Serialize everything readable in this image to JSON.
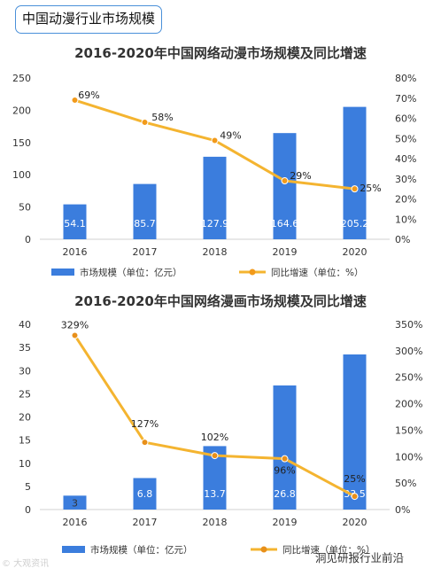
{
  "header": {
    "label": "中国动漫行业市场规模"
  },
  "chart_data": [
    {
      "type": "bar",
      "title": "2016-2020年中国网络动漫市场规模及同比增速",
      "categories": [
        "2016",
        "2017",
        "2018",
        "2019",
        "2020"
      ],
      "series": [
        {
          "name": "市场规模（单位：亿元）",
          "type": "bar",
          "axis": "left",
          "values": [
            54.1,
            85.7,
            127.9,
            164.6,
            205.2
          ],
          "labels": [
            "54.1",
            "85.7",
            "127.9",
            "164.6",
            "205.2"
          ]
        },
        {
          "name": "同比增速（单位：%）",
          "type": "line",
          "axis": "right",
          "values": [
            69,
            58,
            49,
            29,
            25
          ],
          "labels": [
            "69%",
            "58%",
            "49%",
            "29%",
            "25%"
          ]
        }
      ],
      "ylim": [
        0,
        250
      ],
      "yticks": [
        "0",
        "50",
        "100",
        "150",
        "200",
        "250"
      ],
      "y2lim": [
        0,
        80
      ],
      "y2ticks": [
        "0%",
        "10%",
        "20%",
        "30%",
        "40%",
        "50%",
        "60%",
        "70%",
        "80%"
      ],
      "colors": {
        "bar": "#3b7ddd",
        "line": "#f4b430",
        "marker": "#f29a1a"
      },
      "legend_position": "bottom"
    },
    {
      "type": "bar",
      "title": "2016-2020年中国网络漫画市场规模及同比增速",
      "categories": [
        "2016",
        "2017",
        "2018",
        "2019",
        "2020"
      ],
      "series": [
        {
          "name": "市场规模（单位：亿元）",
          "type": "bar",
          "axis": "left",
          "values": [
            3,
            6.8,
            13.7,
            26.8,
            33.5
          ],
          "labels": [
            "3",
            "6.8",
            "13.7",
            "26.8",
            "33.5"
          ]
        },
        {
          "name": "同比增速（单位：%）",
          "type": "line",
          "axis": "right",
          "values": [
            329,
            127,
            102,
            96,
            25
          ],
          "labels": [
            "329%",
            "127%",
            "102%",
            "96%",
            "25%"
          ]
        }
      ],
      "ylim": [
        0,
        40
      ],
      "yticks": [
        "0",
        "5",
        "10",
        "15",
        "20",
        "25",
        "30",
        "35",
        "40"
      ],
      "y2lim": [
        0,
        350
      ],
      "y2ticks": [
        "0%",
        "50%",
        "100%",
        "150%",
        "200%",
        "250%",
        "300%",
        "350%"
      ],
      "colors": {
        "bar": "#3b7ddd",
        "line": "#f4b430",
        "marker": "#e8901a"
      },
      "legend_position": "bottom"
    }
  ],
  "watermarks": {
    "left": "© 大观资讯",
    "right": "洞见研报行业前沿"
  }
}
